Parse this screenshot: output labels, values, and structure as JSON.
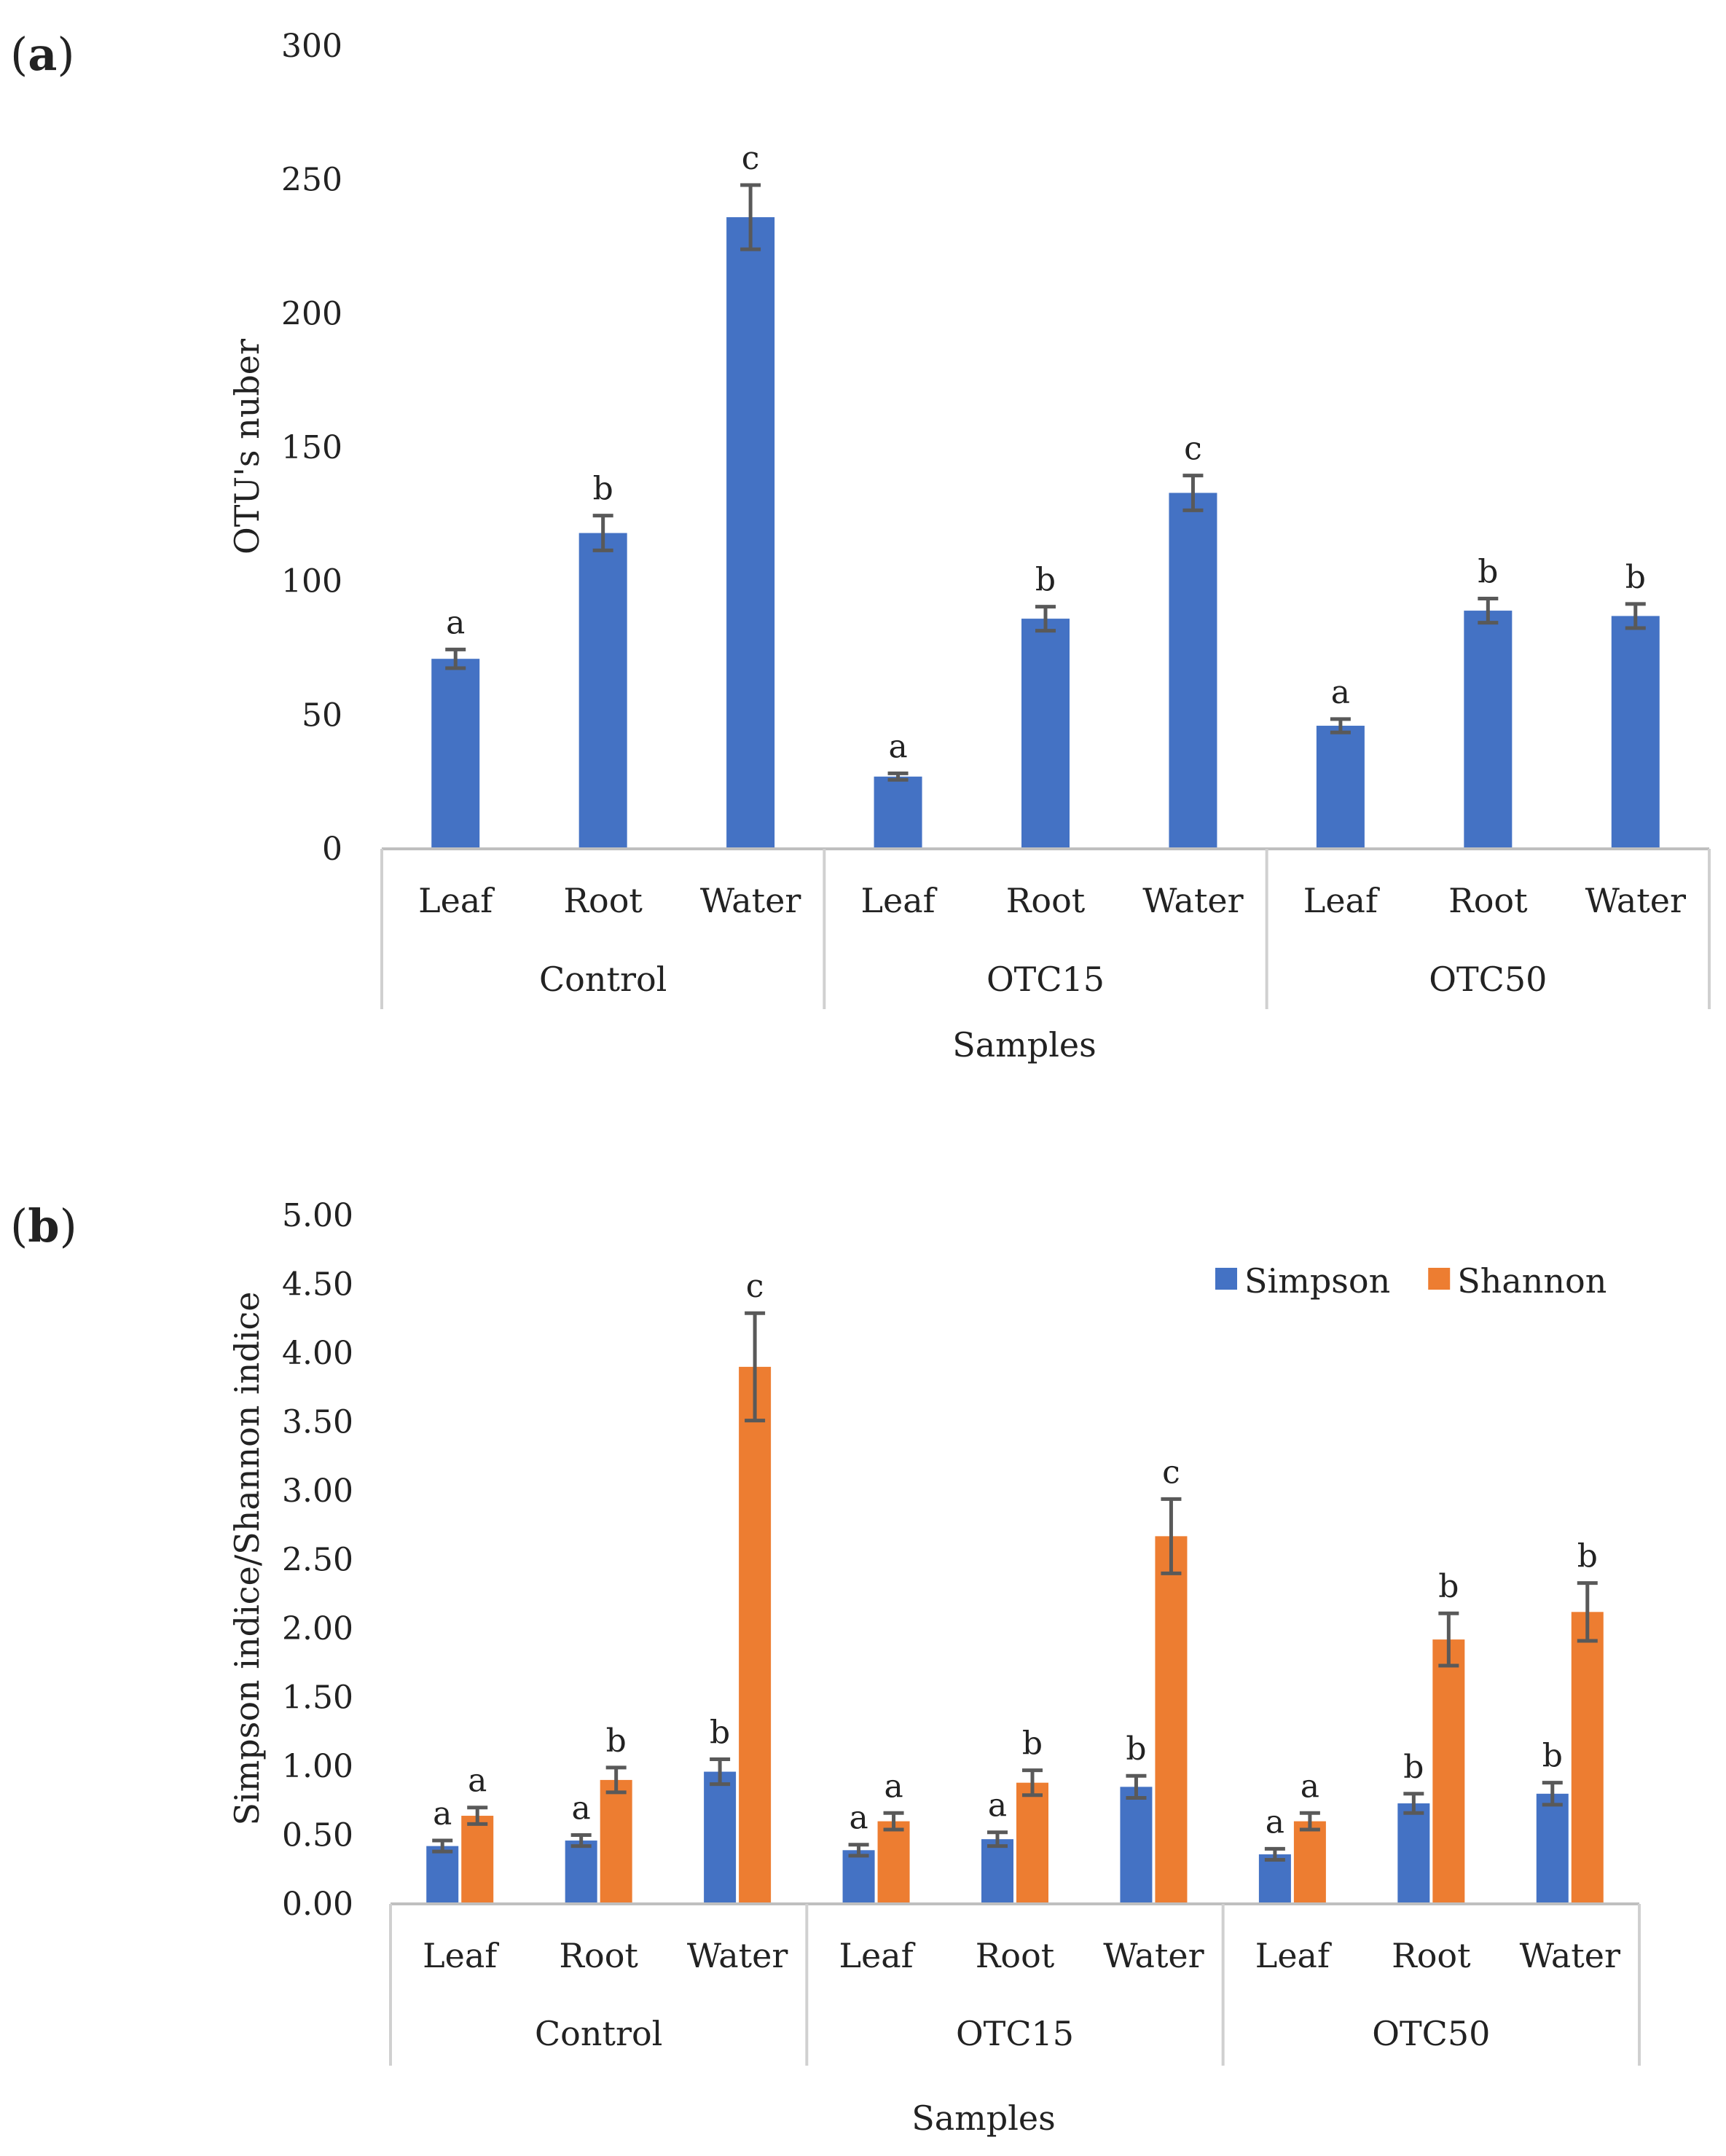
{
  "chart_data": [
    {
      "panel": "a",
      "type": "bar",
      "xlabel": "Samples",
      "ylabel": "OTU's nuber",
      "ylim": [
        0,
        300
      ],
      "yticks": [
        "0",
        "50",
        "100",
        "150",
        "200",
        "250",
        "300"
      ],
      "groups": [
        "Control",
        "OTC15",
        "OTC50"
      ],
      "sub_categories": [
        "Leaf",
        "Root",
        "Water"
      ],
      "colors": {
        "bar": "#4472C4",
        "error": "#595959"
      },
      "series": [
        {
          "values": [
            71,
            118,
            236,
            27,
            86,
            133,
            46,
            89,
            87
          ],
          "errors": [
            3.5,
            6.5,
            12,
            1.2,
            4.5,
            6.5,
            2.5,
            4.5,
            4.5
          ],
          "letters": [
            "a",
            "b",
            "c",
            "a",
            "b",
            "c",
            "a",
            "b",
            "b"
          ]
        }
      ]
    },
    {
      "panel": "b",
      "type": "bar",
      "xlabel": "Samples",
      "ylabel": "Simpson indice/Shannon indice",
      "ylim": [
        0,
        5
      ],
      "yticks": [
        "0.00",
        "0.50",
        "1.00",
        "1.50",
        "2.00",
        "2.50",
        "3.00",
        "3.50",
        "4.00",
        "4.50",
        "5.00"
      ],
      "groups": [
        "Control",
        "OTC15",
        "OTC50"
      ],
      "sub_categories": [
        "Leaf",
        "Root",
        "Water"
      ],
      "legend_position": "top-right",
      "series": [
        {
          "name": "Simpson",
          "color": "#4472C4",
          "values": [
            0.42,
            0.46,
            0.96,
            0.39,
            0.47,
            0.85,
            0.36,
            0.73,
            0.8
          ],
          "errors": [
            0.04,
            0.04,
            0.09,
            0.04,
            0.05,
            0.08,
            0.04,
            0.07,
            0.08
          ],
          "letters": [
            "a",
            "a",
            "b",
            "a",
            "a",
            "b",
            "a",
            "b",
            "b"
          ]
        },
        {
          "name": "Shannon",
          "color": "#ED7D31",
          "values": [
            0.64,
            0.9,
            3.9,
            0.6,
            0.88,
            2.67,
            0.6,
            1.92,
            2.12
          ],
          "errors": [
            0.06,
            0.09,
            0.39,
            0.06,
            0.09,
            0.27,
            0.06,
            0.19,
            0.21
          ],
          "letters": [
            "a",
            "b",
            "c",
            "a",
            "b",
            "c",
            "a",
            "b",
            "b"
          ]
        }
      ]
    }
  ]
}
